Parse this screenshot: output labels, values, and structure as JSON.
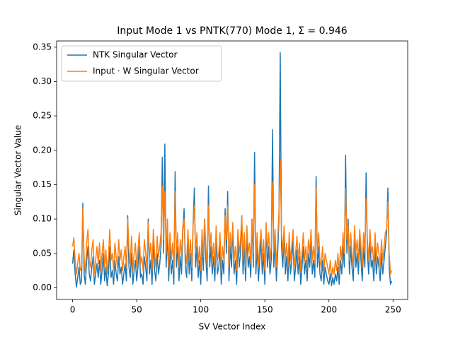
{
  "chart_data": {
    "type": "line",
    "title": "Input Mode 1 vs PNTK(770) Mode 1, Σ =  0.946",
    "xlabel": "SV Vector Index",
    "ylabel": "Singular Vector Value",
    "x": [
      0,
      1,
      2,
      3,
      4,
      5,
      6,
      7,
      8,
      9,
      10,
      11,
      12,
      13,
      14,
      15,
      16,
      17,
      18,
      19,
      20,
      21,
      22,
      23,
      24,
      25,
      26,
      27,
      28,
      29,
      30,
      31,
      32,
      33,
      34,
      35,
      36,
      37,
      38,
      39,
      40,
      41,
      42,
      43,
      44,
      45,
      46,
      47,
      48,
      49,
      50,
      51,
      52,
      53,
      54,
      55,
      56,
      57,
      58,
      59,
      60,
      61,
      62,
      63,
      64,
      65,
      66,
      67,
      68,
      69,
      70,
      71,
      72,
      73,
      74,
      75,
      76,
      77,
      78,
      79,
      80,
      81,
      82,
      83,
      84,
      85,
      86,
      87,
      88,
      89,
      90,
      91,
      92,
      93,
      94,
      95,
      96,
      97,
      98,
      99,
      100,
      101,
      102,
      103,
      104,
      105,
      106,
      107,
      108,
      109,
      110,
      111,
      112,
      113,
      114,
      115,
      116,
      117,
      118,
      119,
      120,
      121,
      122,
      123,
      124,
      125,
      126,
      127,
      128,
      129,
      130,
      131,
      132,
      133,
      134,
      135,
      136,
      137,
      138,
      139,
      140,
      141,
      142,
      143,
      144,
      145,
      146,
      147,
      148,
      149,
      150,
      151,
      152,
      153,
      154,
      155,
      156,
      157,
      158,
      159,
      160,
      161,
      162,
      163,
      164,
      165,
      166,
      167,
      168,
      169,
      170,
      171,
      172,
      173,
      174,
      175,
      176,
      177,
      178,
      179,
      180,
      181,
      182,
      183,
      184,
      185,
      186,
      187,
      188,
      189,
      190,
      191,
      192,
      193,
      194,
      195,
      196,
      197,
      198,
      199,
      200,
      201,
      202,
      203,
      204,
      205,
      206,
      207,
      208,
      209,
      210,
      211,
      212,
      213,
      214,
      215,
      216,
      217,
      218,
      219,
      220,
      221,
      222,
      223,
      224,
      225,
      226,
      227,
      228,
      229,
      230,
      231,
      232,
      233,
      234,
      235,
      236,
      237,
      238,
      239,
      240,
      241,
      242,
      243,
      244,
      245,
      246,
      247,
      248,
      249
    ],
    "series": [
      {
        "name": "NTK Singular Vector",
        "color": "#1f77b4",
        "values": [
          0.035,
          0.055,
          0.02,
          0.001,
          0.015,
          0.03,
          0.005,
          0.01,
          0.123,
          0.02,
          0.005,
          0.04,
          0.06,
          0.02,
          0.01,
          0.03,
          0.045,
          0.005,
          0.02,
          0.035,
          0.015,
          0.04,
          0.005,
          0.025,
          0.05,
          0.01,
          0.03,
          0.003,
          0.02,
          0.06,
          0.015,
          0.025,
          0.005,
          0.04,
          0.02,
          0.01,
          0.045,
          0.02,
          0.03,
          0.005,
          0.02,
          0.035,
          0.01,
          0.105,
          0.03,
          0.015,
          0.05,
          0.005,
          0.025,
          0.04,
          0.01,
          0.03,
          0.06,
          0.015,
          0.02,
          0.005,
          0.045,
          0.03,
          0.01,
          0.1,
          0.02,
          0.04,
          0.005,
          0.07,
          0.025,
          0.01,
          0.05,
          0.02,
          0.035,
          0.06,
          0.19,
          0.05,
          0.209,
          0.03,
          0.08,
          0.01,
          0.06,
          0.02,
          0.04,
          0.005,
          0.169,
          0.03,
          0.06,
          0.01,
          0.045,
          0.02,
          0.08,
          0.115,
          0.03,
          0.015,
          0.07,
          0.02,
          0.05,
          0.01,
          0.09,
          0.145,
          0.03,
          0.06,
          0.015,
          0.04,
          0.005,
          0.07,
          0.025,
          0.1,
          0.04,
          0.01,
          0.148,
          0.03,
          0.06,
          0.02,
          0.045,
          0.01,
          0.075,
          0.02,
          0.03,
          0.06,
          0.005,
          0.04,
          0.02,
          0.115,
          0.05,
          0.14,
          0.01,
          0.06,
          0.03,
          0.09,
          0.02,
          0.04,
          0.005,
          0.07,
          0.03,
          0.05,
          0.105,
          0.02,
          0.06,
          0.01,
          0.08,
          0.03,
          0.045,
          0.015,
          0.1,
          0.03,
          0.197,
          0.02,
          0.06,
          0.01,
          0.04,
          0.07,
          0.02,
          0.05,
          0.005,
          0.09,
          0.03,
          0.06,
          0.02,
          0.04,
          0.23,
          0.03,
          0.07,
          0.01,
          0.05,
          0.1,
          0.342,
          0.06,
          0.03,
          0.08,
          0.02,
          0.045,
          0.01,
          0.06,
          0.02,
          0.04,
          0.07,
          0.01,
          0.03,
          0.055,
          0.02,
          0.045,
          0.005,
          0.03,
          0.06,
          0.02,
          0.04,
          0.01,
          0.05,
          0.03,
          0.07,
          0.02,
          0.04,
          0.015,
          0.162,
          0.03,
          0.06,
          0.02,
          0.01,
          0.04,
          0.005,
          0.03,
          0.02,
          0.01,
          0.005,
          0.02,
          0.003,
          0.015,
          0.005,
          0.02,
          0.01,
          0.03,
          0.005,
          0.04,
          0.02,
          0.06,
          0.03,
          0.193,
          0.05,
          0.1,
          0.02,
          0.06,
          0.03,
          0.01,
          0.08,
          0.03,
          0.05,
          0.02,
          0.07,
          0.04,
          0.01,
          0.06,
          0.03,
          0.167,
          0.05,
          0.02,
          0.07,
          0.03,
          0.04,
          0.01,
          0.06,
          0.02,
          0.045,
          0.03,
          0.01,
          0.05,
          0.02,
          0.04,
          0.06,
          0.08,
          0.145,
          0.03,
          0.005,
          0.01
        ]
      },
      {
        "name": "Input · W Singular Vector",
        "color": "#ff7f0e",
        "values": [
          0.06,
          0.073,
          0.04,
          0.02,
          0.035,
          0.05,
          0.025,
          0.03,
          0.116,
          0.045,
          0.02,
          0.065,
          0.085,
          0.04,
          0.03,
          0.055,
          0.07,
          0.02,
          0.04,
          0.06,
          0.035,
          0.065,
          0.025,
          0.05,
          0.07,
          0.03,
          0.055,
          0.02,
          0.045,
          0.085,
          0.04,
          0.05,
          0.025,
          0.065,
          0.045,
          0.03,
          0.07,
          0.04,
          0.055,
          0.025,
          0.045,
          0.06,
          0.03,
          0.1,
          0.055,
          0.035,
          0.075,
          0.025,
          0.05,
          0.065,
          0.03,
          0.055,
          0.08,
          0.035,
          0.045,
          0.025,
          0.07,
          0.05,
          0.03,
          0.095,
          0.045,
          0.065,
          0.025,
          0.085,
          0.05,
          0.03,
          0.075,
          0.045,
          0.06,
          0.08,
          0.148,
          0.07,
          0.14,
          0.05,
          0.1,
          0.03,
          0.08,
          0.04,
          0.065,
          0.025,
          0.14,
          0.05,
          0.08,
          0.03,
          0.07,
          0.045,
          0.09,
          0.1,
          0.05,
          0.035,
          0.085,
          0.04,
          0.07,
          0.03,
          0.09,
          0.12,
          0.05,
          0.08,
          0.035,
          0.06,
          0.025,
          0.085,
          0.045,
          0.1,
          0.06,
          0.03,
          0.12,
          0.05,
          0.08,
          0.04,
          0.065,
          0.03,
          0.09,
          0.04,
          0.05,
          0.08,
          0.025,
          0.06,
          0.04,
          0.105,
          0.07,
          0.12,
          0.03,
          0.08,
          0.05,
          0.095,
          0.04,
          0.06,
          0.025,
          0.085,
          0.05,
          0.07,
          0.105,
          0.04,
          0.08,
          0.03,
          0.09,
          0.05,
          0.065,
          0.035,
          0.1,
          0.05,
          0.15,
          0.04,
          0.08,
          0.03,
          0.06,
          0.085,
          0.04,
          0.07,
          0.025,
          0.095,
          0.05,
          0.08,
          0.04,
          0.06,
          0.154,
          0.05,
          0.085,
          0.03,
          0.07,
          0.11,
          0.187,
          0.08,
          0.05,
          0.09,
          0.04,
          0.065,
          0.03,
          0.08,
          0.04,
          0.06,
          0.085,
          0.03,
          0.05,
          0.075,
          0.04,
          0.065,
          0.025,
          0.05,
          0.08,
          0.04,
          0.06,
          0.03,
          0.07,
          0.05,
          0.085,
          0.04,
          0.06,
          0.035,
          0.145,
          0.05,
          0.08,
          0.04,
          0.03,
          0.06,
          0.025,
          0.05,
          0.04,
          0.03,
          0.02,
          0.04,
          0.015,
          0.03,
          0.02,
          0.04,
          0.025,
          0.05,
          0.02,
          0.06,
          0.04,
          0.08,
          0.05,
          0.144,
          0.07,
          0.09,
          0.04,
          0.08,
          0.05,
          0.03,
          0.09,
          0.05,
          0.07,
          0.04,
          0.085,
          0.06,
          0.03,
          0.08,
          0.05,
          0.13,
          0.07,
          0.04,
          0.085,
          0.05,
          0.06,
          0.03,
          0.08,
          0.04,
          0.065,
          0.05,
          0.03,
          0.07,
          0.04,
          0.06,
          0.08,
          0.085,
          0.125,
          0.05,
          0.02,
          0.025
        ]
      }
    ],
    "xlim": [
      -12.45,
      261.45
    ],
    "xticks": [
      0,
      50,
      100,
      150,
      200,
      250
    ],
    "ylim": [
      -0.017,
      0.359
    ],
    "yticks": [
      {
        "value": 0,
        "label": "0.00"
      },
      0.05,
      {
        "value": 0.1,
        "label": "0.10"
      },
      0.15,
      {
        "value": 0.2,
        "label": "0.20"
      },
      0.25,
      {
        "value": 0.3,
        "label": "0.30"
      },
      0.35
    ],
    "legend": "upper left"
  }
}
